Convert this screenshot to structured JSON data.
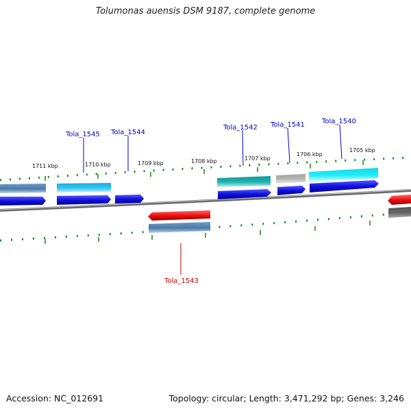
{
  "title": "Tolumonas auensis DSM 9187, complete genome",
  "footer": {
    "accession": "Accession: NC_012691",
    "topology": "Topology: circular; Length: 3,471,292 bp; Genes: 3,246"
  },
  "scale_labels": [
    "1711 kbp",
    "1710 kbp",
    "1709 kbp",
    "1708 kbp",
    "1707 kbp",
    "1706 kbp",
    "1705 kbp"
  ],
  "genes": [
    {
      "locus": "Tola_1545",
      "color": "#0000cc"
    },
    {
      "locus": "Tola_1544",
      "color": "#0000cc"
    },
    {
      "locus": "Tola_1543",
      "color": "#cc0000"
    },
    {
      "locus": "Tola_1542",
      "color": "#0000cc"
    },
    {
      "locus": "Tola_1541",
      "color": "#0000cc"
    },
    {
      "locus": "Tola_1540",
      "color": "#0000cc"
    }
  ],
  "feature_colors": {
    "cds_forward": "#1010e0",
    "cds_reverse": "#ee1111",
    "steelblue": "#4a7aa8",
    "skyblue": "#33c8f0",
    "teal": "#20b2b2",
    "grey": "#b8b8b8",
    "cyan": "#22ecf6",
    "dark_grey": "#666666",
    "tick": "#118811"
  }
}
